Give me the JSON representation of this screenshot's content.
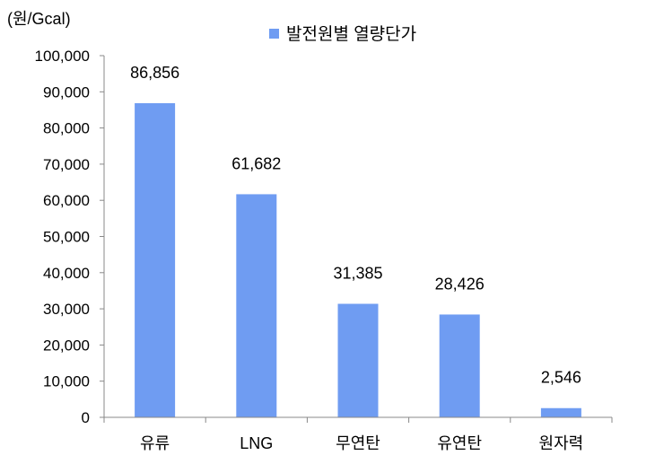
{
  "chart_data": {
    "type": "bar",
    "unit_label": "(원/Gcal)",
    "categories": [
      "유류",
      "LNG",
      "무연탄",
      "유연탄",
      "원자력"
    ],
    "series": [
      {
        "name": "발전원별 열량단가",
        "values": [
          86856,
          61682,
          31385,
          28426,
          2546
        ],
        "color": "#6f9cf2"
      }
    ],
    "data_labels": [
      "86,856",
      "61,682",
      "31,385",
      "28,426",
      "2,546"
    ],
    "y_ticks": [
      "0",
      "10,000",
      "20,000",
      "30,000",
      "40,000",
      "50,000",
      "60,000",
      "70,000",
      "80,000",
      "90,000",
      "100,000"
    ],
    "ylim": [
      0,
      100000
    ],
    "legend_position": "top",
    "grid": false
  }
}
